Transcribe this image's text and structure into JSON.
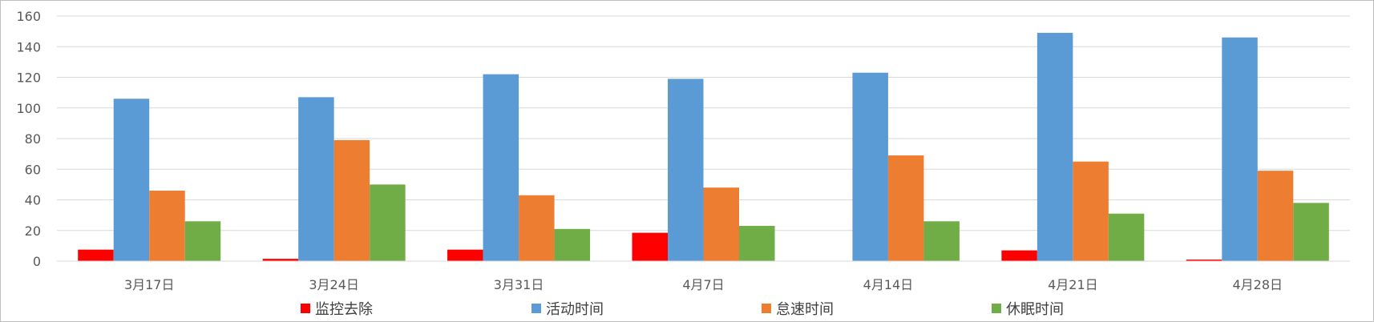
{
  "chart_data": {
    "type": "bar",
    "title": "",
    "xlabel": "",
    "ylabel": "",
    "ylim": [
      0,
      160
    ],
    "yticks": [
      0,
      20,
      40,
      60,
      80,
      100,
      120,
      140,
      160
    ],
    "grid": true,
    "legend_position": "bottom",
    "categories": [
      "3月17日",
      "3月24日",
      "3月31日",
      "4月7日",
      "4月14日",
      "4月21日",
      "4月28日"
    ],
    "series": [
      {
        "name": "监控去除",
        "color": "#ff0000",
        "values": [
          7.5,
          1.5,
          7.5,
          18.5,
          0,
          7,
          1
        ]
      },
      {
        "name": "活动时间",
        "color": "#5b9bd5",
        "values": [
          106,
          107,
          122,
          119,
          123,
          149,
          146
        ]
      },
      {
        "name": "怠速时间",
        "color": "#ed7d31",
        "values": [
          46,
          79,
          43,
          48,
          69,
          65,
          59
        ]
      },
      {
        "name": "休眠时间",
        "color": "#70ad47",
        "values": [
          26,
          50,
          21,
          23,
          26,
          31,
          38
        ]
      }
    ]
  }
}
